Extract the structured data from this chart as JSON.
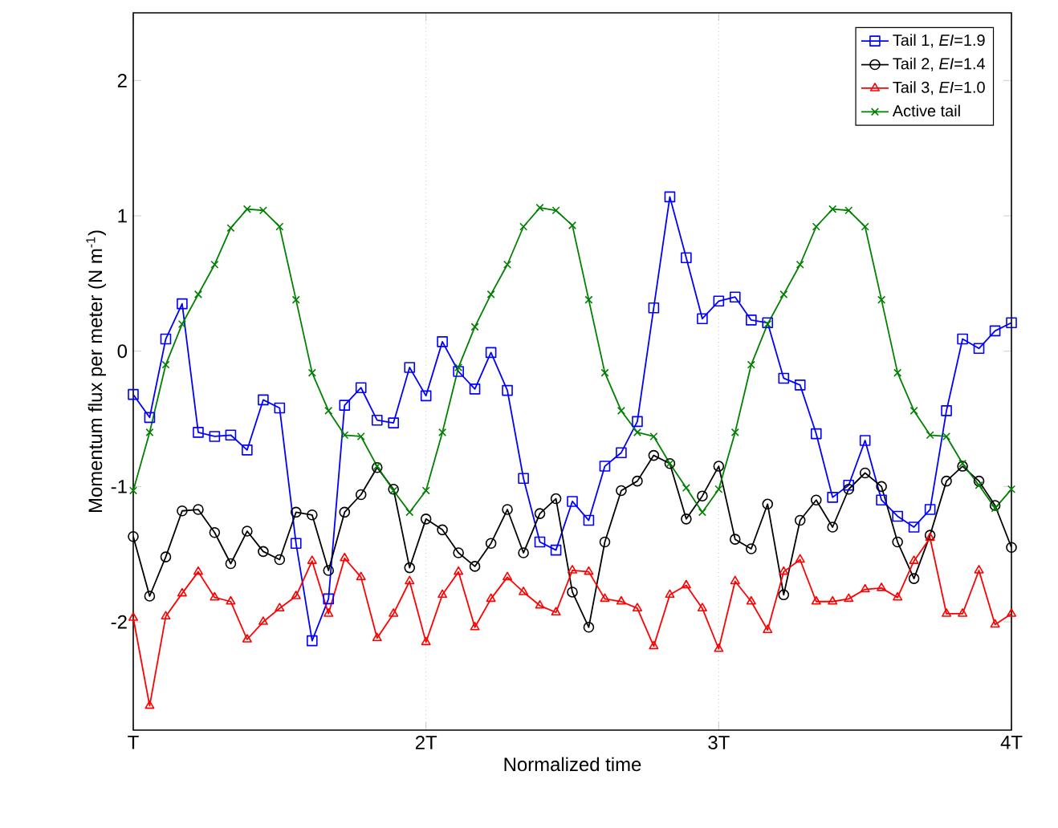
{
  "chart_data": {
    "type": "line",
    "xlabel": "Normalized time",
    "ylabel": "Momentum flux per meter (N m$^{-1}$)",
    "x": [
      1,
      1.056,
      1.111,
      1.167,
      1.222,
      1.278,
      1.333,
      1.389,
      1.444,
      1.5,
      1.556,
      1.611,
      1.667,
      1.722,
      1.778,
      1.833,
      1.889,
      1.944,
      2,
      2.056,
      2.111,
      2.167,
      2.222,
      2.278,
      2.333,
      2.389,
      2.444,
      2.5,
      2.556,
      2.611,
      2.667,
      2.722,
      2.778,
      2.833,
      2.889,
      2.944,
      3,
      3.056,
      3.111,
      3.167,
      3.222,
      3.278,
      3.333,
      3.389,
      3.444,
      3.5,
      3.556,
      3.611,
      3.667,
      3.722,
      3.778,
      3.833,
      3.889,
      3.944,
      4
    ],
    "xlim": [
      1,
      4
    ],
    "ylim": [
      -2.8,
      2.5
    ],
    "xticks": [
      {
        "value": 1,
        "label": "T"
      },
      {
        "value": 2,
        "label": "2T"
      },
      {
        "value": 3,
        "label": "3T"
      },
      {
        "value": 4,
        "label": "4T"
      }
    ],
    "yticks": [
      -2,
      -1,
      0,
      1,
      2
    ],
    "grid": "x",
    "legend": "top right",
    "line_style": "solid",
    "series": [
      {
        "name": "Tail 1, *EI*=1.9",
        "color": "#0000ff",
        "marker": "square",
        "values": [
          -0.32,
          -0.49,
          0.09,
          0.35,
          -0.6,
          -0.63,
          -0.62,
          -0.73,
          -0.36,
          -0.42,
          -1.42,
          -2.14,
          -1.83,
          -0.4,
          -0.27,
          -0.51,
          -0.53,
          -0.12,
          -0.33,
          0.07,
          -0.15,
          -0.28,
          -0.01,
          -0.29,
          -0.94,
          -1.41,
          -1.47,
          -1.11,
          -1.25,
          -0.85,
          -0.75,
          -0.52,
          0.32,
          1.14,
          0.69,
          0.24,
          0.37,
          0.4,
          0.23,
          0.21,
          -0.2,
          -0.25,
          -0.61,
          -1.08,
          -0.99,
          -0.66,
          -1.1,
          -1.22,
          -1.3,
          -1.17,
          -0.44,
          0.09,
          0.02,
          0.15,
          0.21
        ]
      },
      {
        "name": "Tail 2, *EI*=1.4",
        "color": "#000000",
        "marker": "circle",
        "values": [
          -1.37,
          -1.81,
          -1.52,
          -1.18,
          -1.17,
          -1.34,
          -1.57,
          -1.33,
          -1.48,
          -1.54,
          -1.19,
          -1.21,
          -1.62,
          -1.19,
          -1.06,
          -0.86,
          -1.02,
          -1.6,
          -1.24,
          -1.32,
          -1.49,
          -1.59,
          -1.42,
          -1.17,
          -1.49,
          -1.2,
          -1.09,
          -1.78,
          -2.04,
          -1.41,
          -1.03,
          -0.96,
          -0.77,
          -0.83,
          -1.24,
          -1.07,
          -0.85,
          -1.39,
          -1.46,
          -1.13,
          -1.8,
          -1.25,
          -1.1,
          -1.3,
          -1.02,
          -0.9,
          -1.0,
          -1.41,
          -1.68,
          -1.36,
          -0.96,
          -0.85,
          -0.96,
          -1.14,
          -1.45
        ]
      },
      {
        "name": "Tail 3, *EI*=1.0",
        "color": "#ff0000",
        "marker": "triangle",
        "values": [
          -1.97,
          -2.62,
          -1.96,
          -1.79,
          -1.63,
          -1.82,
          -1.85,
          -2.13,
          -2.0,
          -1.9,
          -1.81,
          -1.55,
          -1.94,
          -1.53,
          -1.67,
          -2.12,
          -1.94,
          -1.7,
          -2.15,
          -1.8,
          -1.63,
          -2.04,
          -1.83,
          -1.67,
          -1.78,
          -1.88,
          -1.93,
          -1.62,
          -1.63,
          -1.83,
          -1.85,
          -1.9,
          -2.18,
          -1.8,
          -1.73,
          -1.9,
          -2.2,
          -1.7,
          -1.85,
          -2.06,
          -1.63,
          -1.54,
          -1.85,
          -1.85,
          -1.83,
          -1.76,
          -1.75,
          -1.82,
          -1.55,
          -1.38,
          -1.94,
          -1.94,
          -1.62,
          -2.02,
          -1.94
        ]
      },
      {
        "name": "Active tail",
        "color": "#008000",
        "marker": "cross",
        "values": [
          -1.03,
          -0.6,
          -0.1,
          0.2,
          0.42,
          0.64,
          0.91,
          1.05,
          1.04,
          0.92,
          0.38,
          -0.16,
          -0.44,
          -0.62,
          -0.63,
          -0.85,
          -1.03,
          -1.19,
          -1.03,
          -0.6,
          -0.12,
          0.18,
          0.42,
          0.64,
          0.92,
          1.06,
          1.04,
          0.93,
          0.38,
          -0.16,
          -0.44,
          -0.6,
          -0.63,
          -0.83,
          -1.01,
          -1.19,
          -1.02,
          -0.6,
          -0.1,
          0.2,
          0.42,
          0.64,
          0.92,
          1.05,
          1.04,
          0.92,
          0.38,
          -0.16,
          -0.44,
          -0.62,
          -0.63,
          -0.83,
          -0.99,
          -1.16,
          -1.02
        ]
      }
    ]
  }
}
